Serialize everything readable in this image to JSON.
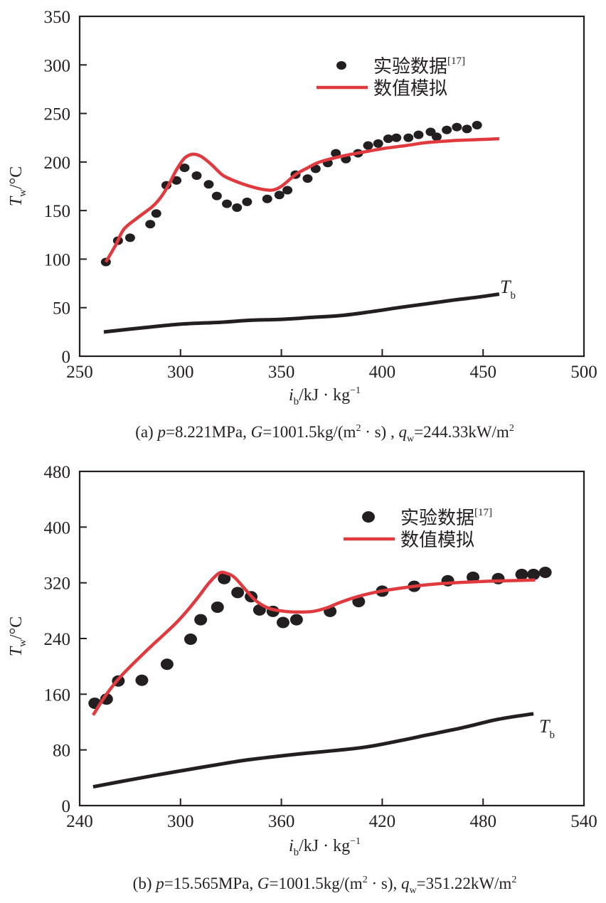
{
  "chart_data": [
    {
      "id": "a",
      "type": "line",
      "caption": {
        "prefix": "(a)",
        "p_var": "p",
        "p_val": "=8.221MPa, ",
        "G_var": "G",
        "G_val": "=1001.5kg/(m",
        "G_sup": "2",
        "G_rest": " · s) , ",
        "q_var": "q",
        "q_sub": "w",
        "q_val": "=244.33kW/m",
        "q_sup": "2"
      },
      "xlabel": {
        "var": "i",
        "sub": "b",
        "unit": "/kJ · kg",
        "sup": "−1"
      },
      "ylabel": {
        "var": "T",
        "sub": "w",
        "unit": "/°C"
      },
      "xlim": [
        250,
        500
      ],
      "ylim": [
        0,
        350
      ],
      "xticks": [
        250,
        300,
        350,
        400,
        450,
        500
      ],
      "yticks": [
        0,
        50,
        100,
        150,
        200,
        250,
        300,
        350
      ],
      "grid": false,
      "legend": {
        "position": "top-right",
        "entries": [
          {
            "label": "实验数据",
            "sup": "[17]",
            "marker": "dot",
            "color": "#231f20"
          },
          {
            "label": "数值模拟",
            "marker": "line",
            "color": "#e03a3e"
          }
        ]
      },
      "series": [
        {
          "name": "实验数据[17]",
          "kind": "scatter",
          "color": "#231f20",
          "x": [
            263,
            269,
            275,
            285,
            288,
            293,
            298,
            302,
            308,
            314,
            318,
            323,
            328,
            333,
            343,
            349,
            353,
            357,
            363,
            367,
            373,
            377,
            382,
            388,
            393,
            398,
            403,
            407,
            413,
            418,
            424,
            427,
            432,
            437,
            442,
            447
          ],
          "y": [
            97,
            119,
            122,
            136,
            147,
            176,
            181,
            194,
            186,
            177,
            165,
            157,
            153,
            159,
            162,
            166,
            171,
            187,
            183,
            193,
            199,
            209,
            203,
            209,
            217,
            219,
            224,
            225,
            225,
            228,
            231,
            226,
            233,
            236,
            234,
            238
          ]
        },
        {
          "name": "数值模拟",
          "kind": "line",
          "color": "#e03a3e",
          "x": [
            263,
            268,
            272,
            279,
            286,
            290,
            294,
            298,
            302,
            306,
            310,
            315,
            320,
            323,
            330,
            338,
            345,
            350,
            357,
            363,
            369,
            380,
            390,
            401,
            412,
            422,
            435,
            447,
            458
          ],
          "y": [
            97,
            115,
            131,
            143,
            154,
            163,
            176,
            192,
            204,
            208,
            206,
            198,
            188,
            184,
            178,
            173,
            171,
            175,
            187,
            194,
            200,
            206,
            210,
            214,
            217,
            220,
            222,
            223,
            224
          ]
        },
        {
          "name": "T_b",
          "kind": "line",
          "color": "#231f20",
          "label": {
            "var": "T",
            "sub": "b"
          },
          "x": [
            262,
            280,
            300,
            320,
            334,
            350,
            365,
            380,
            395,
            408,
            422,
            436,
            448,
            458
          ],
          "y": [
            25,
            29,
            33,
            35,
            37,
            38,
            40,
            42,
            46,
            50,
            54,
            58,
            61,
            64
          ]
        }
      ]
    },
    {
      "id": "b",
      "type": "line",
      "caption": {
        "prefix": "(b)",
        "p_var": "p",
        "p_val": "=15.565MPa, ",
        "G_var": "G",
        "G_val": "=1001.5kg/(m",
        "G_sup": "2",
        "G_rest": " · s),  ",
        "q_var": "q",
        "q_sub": "w",
        "q_val": "=351.22kW/m",
        "q_sup": "2"
      },
      "xlabel": {
        "var": "i",
        "sub": "b",
        "unit": "/kJ · kg",
        "sup": "−1"
      },
      "ylabel": {
        "var": "T",
        "sub": "w",
        "unit": "/°C"
      },
      "xlim": [
        240,
        540
      ],
      "ylim": [
        0,
        480
      ],
      "xticks": [
        240,
        300,
        360,
        420,
        480,
        540
      ],
      "yticks": [
        0,
        80,
        160,
        240,
        320,
        400,
        480
      ],
      "grid": false,
      "legend": {
        "position": "top-right",
        "entries": [
          {
            "label": "实验数据",
            "sup": "[17]",
            "marker": "dot",
            "color": "#231f20"
          },
          {
            "label": "数值模拟",
            "marker": "line",
            "color": "#e03a3e"
          }
        ]
      },
      "series": [
        {
          "name": "实验数据[17]",
          "kind": "scatter",
          "color": "#231f20",
          "x": [
            249,
            256,
            263,
            277,
            292,
            306,
            312,
            322,
            326,
            334,
            342,
            347,
            355,
            361,
            369,
            389,
            406,
            420,
            439,
            459,
            474,
            489,
            503,
            510,
            517
          ],
          "y": [
            147,
            153,
            179,
            180,
            203,
            239,
            267,
            285,
            326,
            306,
            300,
            281,
            279,
            263,
            267,
            279,
            293,
            308,
            315,
            323,
            328,
            326,
            332,
            332,
            335
          ]
        },
        {
          "name": "数值模拟",
          "kind": "line",
          "color": "#e03a3e",
          "x": [
            248,
            256,
            265,
            280,
            296,
            304,
            311,
            317,
            323,
            327,
            332,
            338,
            345,
            353,
            362,
            370,
            379,
            387,
            394,
            405,
            417,
            430,
            446,
            462,
            480,
            495,
            511
          ],
          "y": [
            130,
            160,
            187,
            223,
            259,
            280,
            301,
            320,
            334,
            334,
            328,
            312,
            294,
            283,
            279,
            278,
            279,
            284,
            291,
            300,
            307,
            312,
            317,
            320,
            322,
            323,
            324
          ]
        },
        {
          "name": "T_b",
          "kind": "line",
          "color": "#231f20",
          "label": {
            "var": "T",
            "sub": "b"
          },
          "x": [
            248,
            270,
            298,
            320,
            341,
            370,
            407,
            430,
            446,
            468,
            489,
            510
          ],
          "y": [
            27,
            37,
            49,
            58,
            66,
            74,
            83,
            93,
            101,
            112,
            124,
            132
          ]
        }
      ]
    }
  ]
}
